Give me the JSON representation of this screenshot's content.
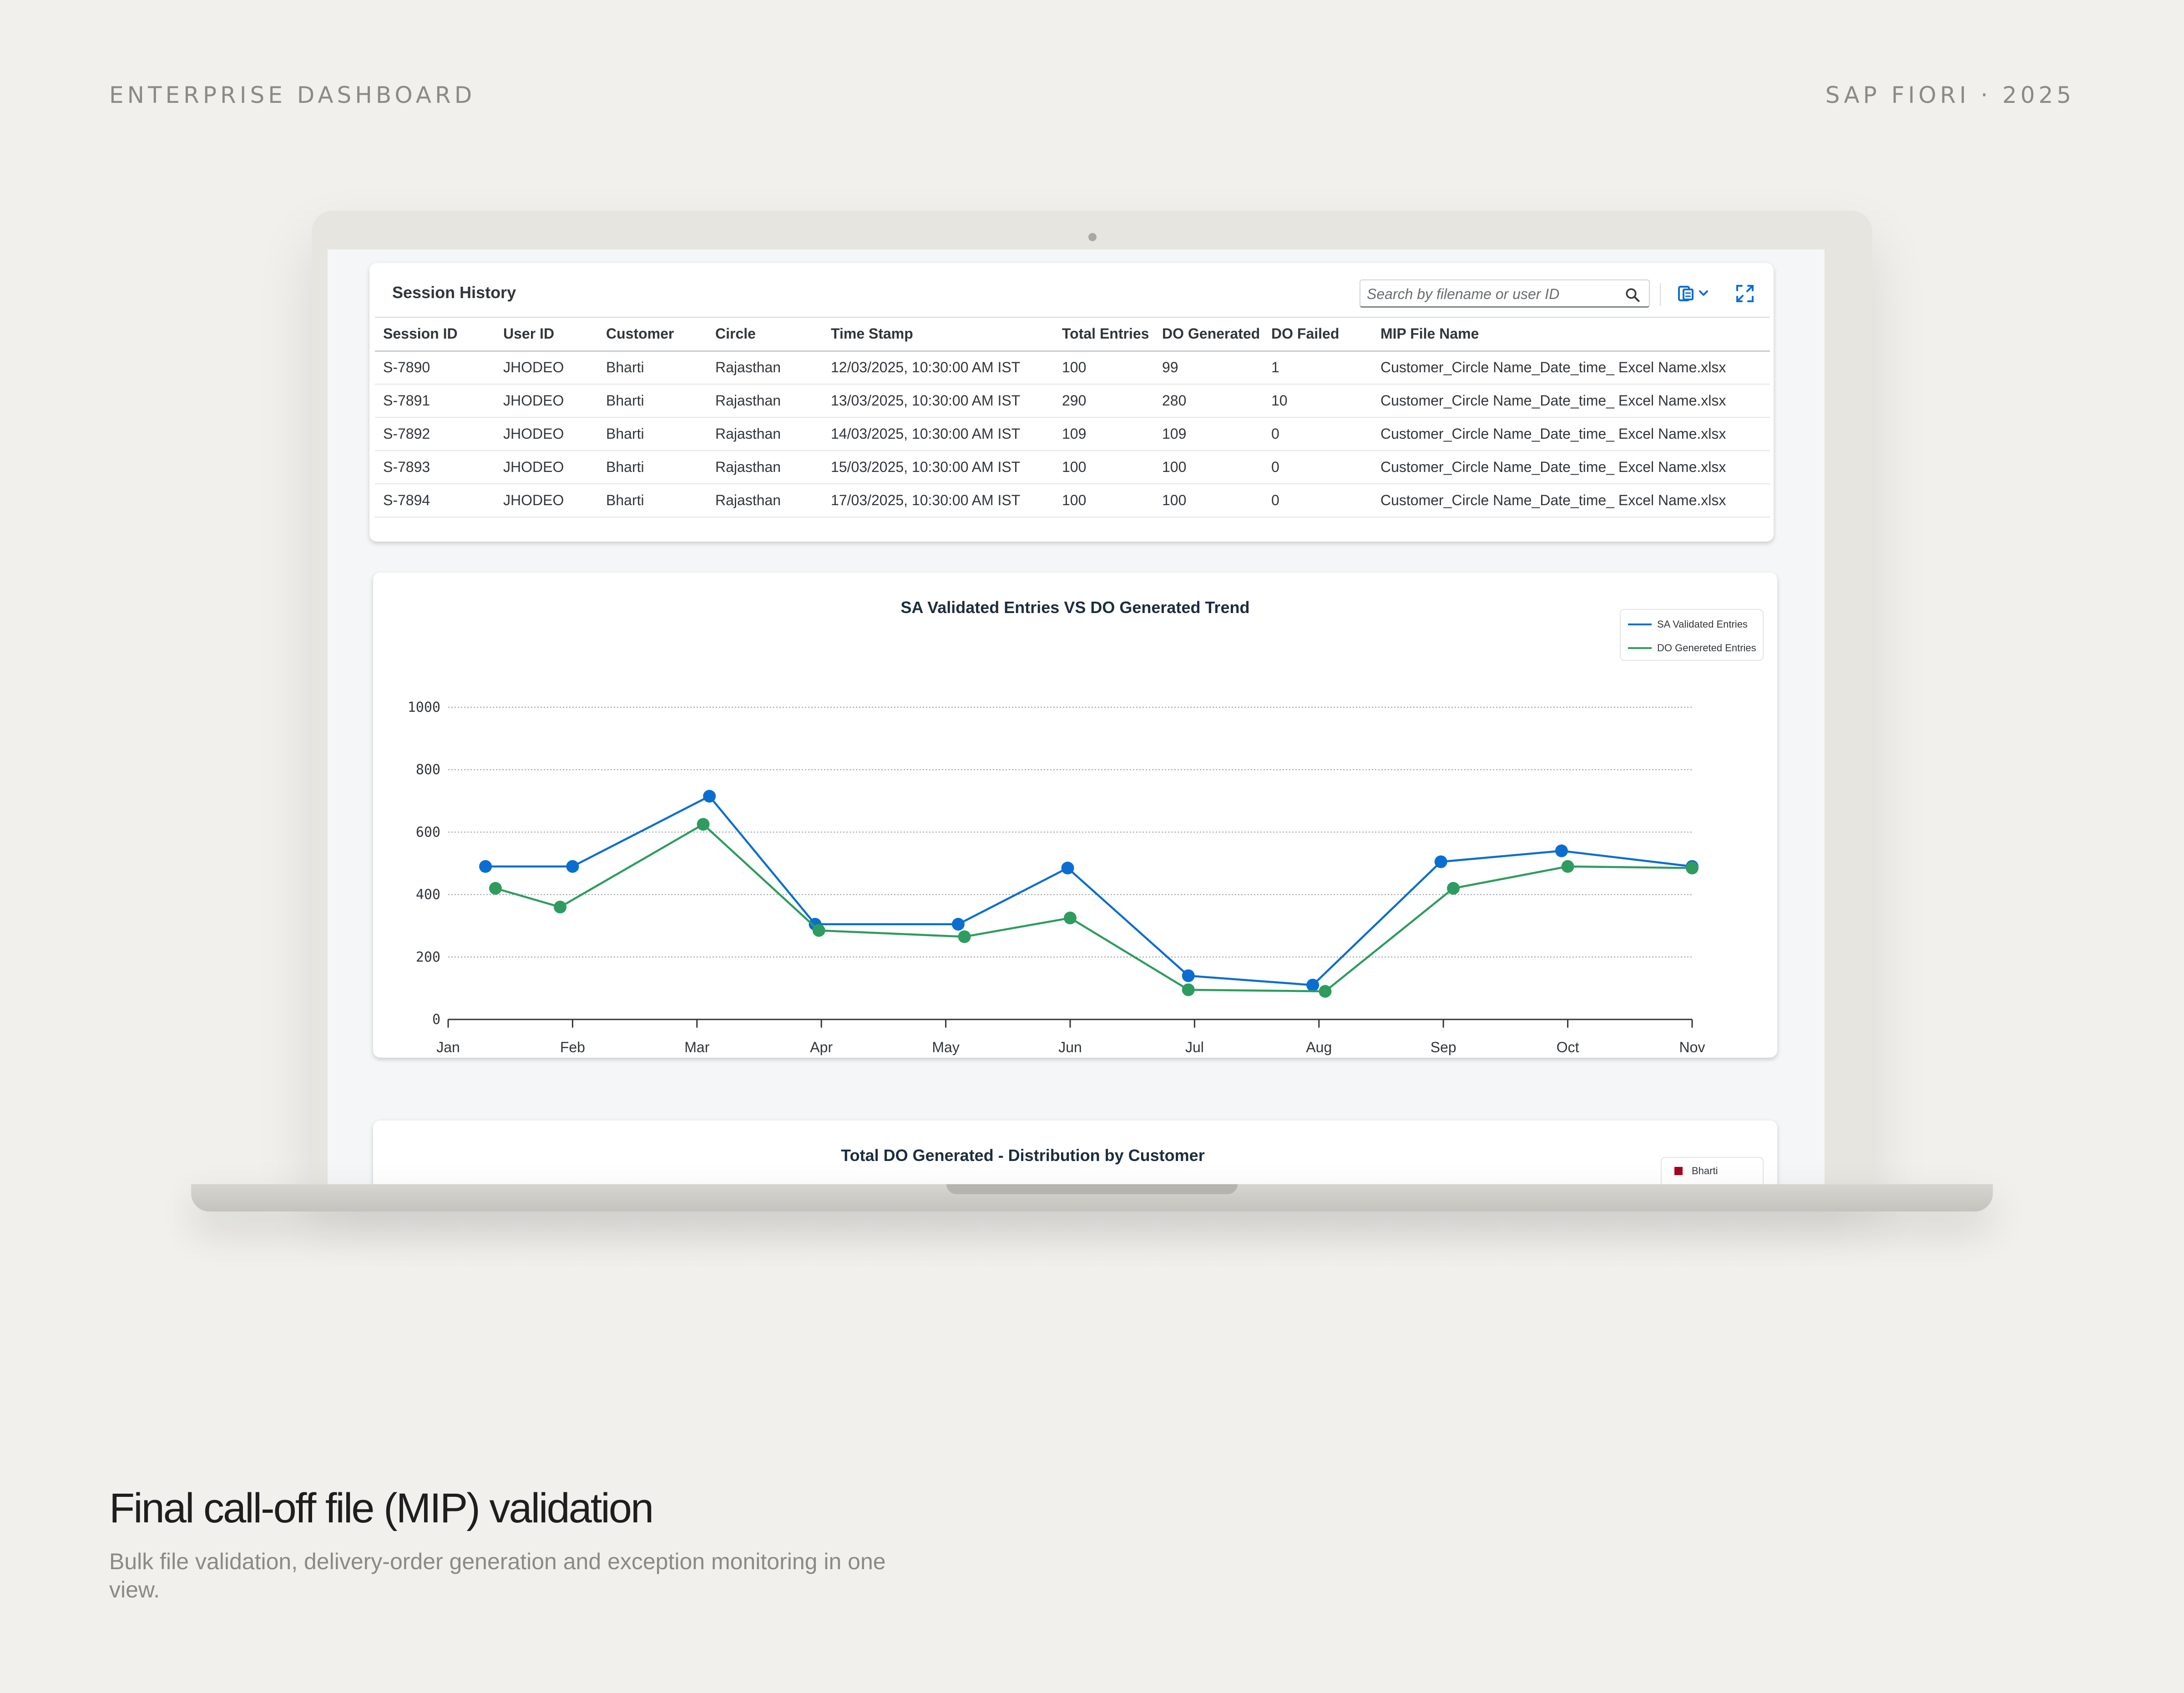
{
  "page": {
    "eyebrow_left": "ENTERPRISE DASHBOARD",
    "eyebrow_right": "SAP FIORI · 2025",
    "caption_title": "Final call-off file (MIP) validation",
    "caption_subtitle": "Bulk file validation, delivery-order generation and exception monitoring in one view."
  },
  "session_history": {
    "title": "Session History",
    "search_placeholder": "Search by filename or user ID",
    "columns": [
      "Session ID",
      "User ID",
      "Customer",
      "Circle",
      "Time Stamp",
      "Total Entries",
      "DO Generated",
      "DO Failed",
      "MIP File Name"
    ],
    "rows": [
      [
        "S-7890",
        "JHODEO",
        "Bharti",
        "Rajasthan",
        "12/03/2025, 10:30:00 AM IST",
        "100",
        "99",
        "1",
        "Customer_Circle Name_Date_time_ Excel Name.xlsx"
      ],
      [
        "S-7891",
        "JHODEO",
        "Bharti",
        "Rajasthan",
        "13/03/2025, 10:30:00 AM IST",
        "290",
        "280",
        "10",
        "Customer_Circle Name_Date_time_ Excel Name.xlsx"
      ],
      [
        "S-7892",
        "JHODEO",
        "Bharti",
        "Rajasthan",
        "14/03/2025, 10:30:00 AM IST",
        "109",
        "109",
        "0",
        "Customer_Circle Name_Date_time_ Excel Name.xlsx"
      ],
      [
        "S-7893",
        "JHODEO",
        "Bharti",
        "Rajasthan",
        "15/03/2025, 10:30:00 AM IST",
        "100",
        "100",
        "0",
        "Customer_Circle Name_Date_time_ Excel Name.xlsx"
      ],
      [
        "S-7894",
        "JHODEO",
        "Bharti",
        "Rajasthan",
        "17/03/2025, 10:30:00 AM IST",
        "100",
        "100",
        "0",
        "Customer_Circle Name_Date_time_ Excel Name.xlsx"
      ]
    ]
  },
  "pie_chart": {
    "title": "Total DO Generated - Distribution by Customer",
    "legend": [
      {
        "name": "Bharti",
        "color": "#a8001e"
      }
    ]
  },
  "colors": {
    "series_sa": "#0a6ed1",
    "series_do": "#2e9c5e"
  },
  "chart_data": {
    "type": "line",
    "title": "SA Validated Entries VS DO Generated Trend",
    "xlabel": "",
    "ylabel": "",
    "categories": [
      "Jan",
      "Feb",
      "Mar",
      "Apr",
      "May",
      "Jun",
      "Jul",
      "Aug",
      "Sep",
      "Oct",
      "Nov"
    ],
    "ylim": [
      0,
      1000
    ],
    "yticks": [
      0,
      200,
      400,
      600,
      800,
      1000
    ],
    "grid": true,
    "legend_position": "top-right",
    "series": [
      {
        "name": "SA Validated Entries",
        "color": "#0a6ed1",
        "points": [
          {
            "x": 0.3,
            "y": 490
          },
          {
            "x": 1.0,
            "y": 490
          },
          {
            "x": 2.1,
            "y": 715
          },
          {
            "x": 2.95,
            "y": 305
          },
          {
            "x": 4.1,
            "y": 305
          },
          {
            "x": 4.98,
            "y": 485
          },
          {
            "x": 5.95,
            "y": 140
          },
          {
            "x": 6.95,
            "y": 110
          },
          {
            "x": 7.98,
            "y": 505
          },
          {
            "x": 8.95,
            "y": 540
          },
          {
            "x": 10.0,
            "y": 490
          }
        ]
      },
      {
        "name": "DO Genereted Entries",
        "color": "#2e9c5e",
        "points": [
          {
            "x": 0.38,
            "y": 420
          },
          {
            "x": 0.9,
            "y": 360
          },
          {
            "x": 2.05,
            "y": 625
          },
          {
            "x": 2.98,
            "y": 285
          },
          {
            "x": 4.15,
            "y": 265
          },
          {
            "x": 5.0,
            "y": 325
          },
          {
            "x": 5.95,
            "y": 95
          },
          {
            "x": 7.05,
            "y": 90
          },
          {
            "x": 8.08,
            "y": 420
          },
          {
            "x": 9.0,
            "y": 490
          },
          {
            "x": 10.0,
            "y": 485
          }
        ]
      }
    ]
  }
}
